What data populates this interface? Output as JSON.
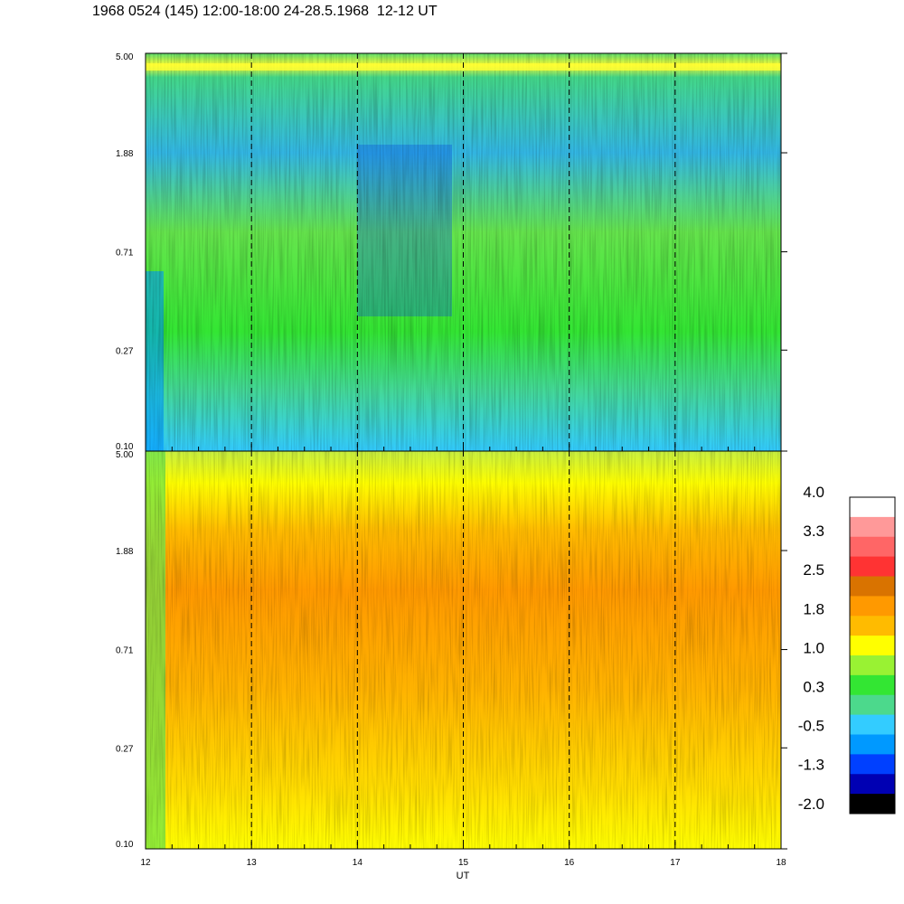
{
  "title": "1968 0524 (145) 12:00-18:00 24-28.5.1968  12-12 UT",
  "chart_data": [
    {
      "type": "heatmap",
      "panel": "top",
      "x": {
        "label": "UT",
        "range": [
          12,
          18
        ],
        "ticks": [
          "12",
          "13",
          "14",
          "15",
          "16",
          "17",
          "18"
        ]
      },
      "y": {
        "scale": "log",
        "range": [
          0.1,
          5.0
        ],
        "ticks": [
          "0.10",
          "0.27",
          "0.71",
          "1.88",
          "5.00"
        ]
      },
      "dominant_colors": [
        "#33e633",
        "#4cd98c",
        "#00a6ff",
        "#ffff00"
      ],
      "dashed_verticals": [
        13,
        14,
        15,
        16,
        17
      ]
    },
    {
      "type": "heatmap",
      "panel": "bottom",
      "x": {
        "label": "UT",
        "range": [
          12,
          18
        ],
        "ticks": [
          "12",
          "13",
          "14",
          "15",
          "16",
          "17",
          "18"
        ]
      },
      "y": {
        "scale": "log",
        "range": [
          0.1,
          5.0
        ],
        "ticks": [
          "0.10",
          "0.27",
          "0.71",
          "1.88",
          "5.00"
        ]
      },
      "dominant_colors": [
        "#ffb300",
        "#ff9900",
        "#ffff00",
        "#99f233",
        "#d97300"
      ],
      "dashed_verticals": [
        13,
        14,
        15,
        16,
        17
      ]
    }
  ],
  "colorbar": {
    "labels": [
      "4.0",
      "3.3",
      "2.5",
      "1.8",
      "1.0",
      "0.3",
      "-0.5",
      "-1.3",
      "-2.0"
    ],
    "colors": [
      "#ffffff",
      "#ff9999",
      "#ff6666",
      "#ff3333",
      "#d97300",
      "#ff9900",
      "#ffbb00",
      "#ffff00",
      "#99f233",
      "#33e633",
      "#4cd98c",
      "#33ccff",
      "#0099ff",
      "#0040ff",
      "#0000b3",
      "#000000"
    ]
  },
  "xaxis_label": "UT"
}
